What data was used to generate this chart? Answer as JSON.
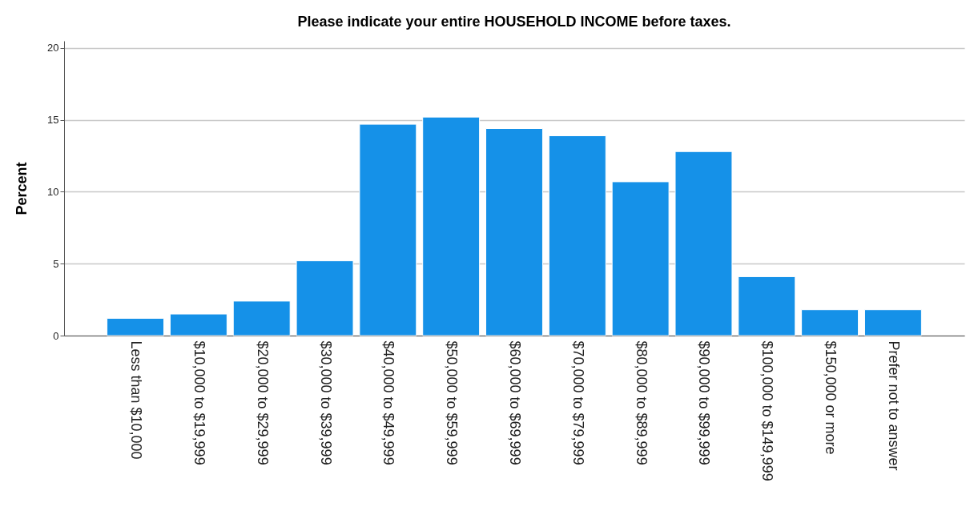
{
  "chart_data": {
    "type": "bar",
    "title": "Please indicate your entire HOUSEHOLD INCOME before taxes.",
    "ylabel": "Percent",
    "categories": [
      "Less than $10,000",
      "$10,000 to $19,999",
      "$20,000 to $29,999",
      "$30,000 to $39,999",
      "$40,000 to $49,999",
      "$50,000 to $59,999",
      "$60,000 to $69,999",
      "$70,000 to $79,999",
      "$80,000 to $89,999",
      "$90,000 to $99,999",
      "$100,000 to $149,999",
      "$150,000 or more",
      "Prefer not to answer"
    ],
    "values": [
      1.2,
      1.5,
      2.4,
      5.2,
      14.7,
      15.2,
      14.4,
      13.9,
      10.7,
      12.8,
      4.1,
      1.8,
      1.8
    ],
    "color": "#1591e8",
    "ylim": [
      0,
      20.5
    ],
    "yticks": [
      0,
      5,
      10,
      15,
      20
    ],
    "grid": "y"
  }
}
